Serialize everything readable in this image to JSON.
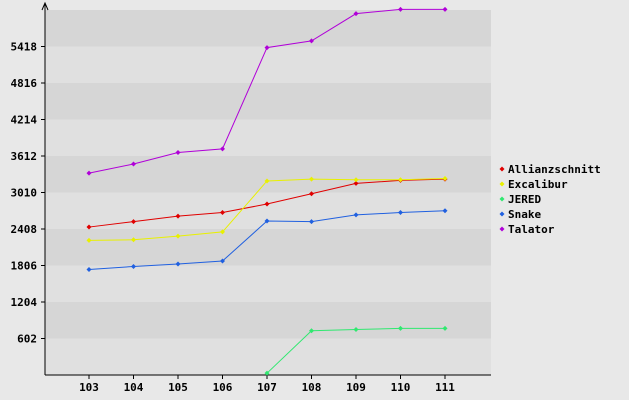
{
  "chart_data": {
    "type": "line",
    "x": [
      "103",
      "104",
      "105",
      "106",
      "107",
      "108",
      "109",
      "110",
      "111"
    ],
    "y_ticks": [
      "602",
      "1204",
      "1806",
      "2408",
      "3010",
      "3612",
      "4214",
      "4816",
      "5418"
    ],
    "ylim": [
      0,
      6020
    ],
    "grid": "horizontal alternating bands",
    "legend_position": "right",
    "series": [
      {
        "name": "Allianzschnitt",
        "color": "#e00000",
        "values": [
          2440,
          2530,
          2620,
          2680,
          2820,
          2990,
          3160,
          3210,
          3230
        ]
      },
      {
        "name": "Excalibur",
        "color": "#e8f000",
        "values": [
          2220,
          2230,
          2290,
          2360,
          3200,
          3230,
          3220,
          3220,
          3240
        ]
      },
      {
        "name": "JERED",
        "color": "#30e870",
        "values": [
          null,
          null,
          null,
          null,
          30,
          730,
          750,
          770,
          770
        ]
      },
      {
        "name": "Snake",
        "color": "#2060e0",
        "values": [
          1740,
          1790,
          1830,
          1880,
          2540,
          2530,
          2640,
          2680,
          2710
        ]
      },
      {
        "name": "Talator",
        "color": "#b000d8",
        "values": [
          3330,
          3480,
          3670,
          3730,
          5400,
          5510,
          5960,
          6030,
          6030
        ]
      }
    ]
  }
}
